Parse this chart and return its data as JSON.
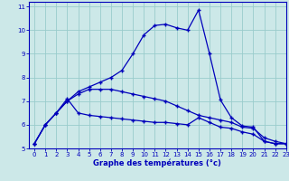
{
  "xlabel": "Graphe des températures (°c)",
  "bg_color": "#cce8e8",
  "line_color": "#0000bb",
  "grid_color": "#99cccc",
  "axis_color": "#0000bb",
  "xlim": [
    -0.5,
    23
  ],
  "ylim": [
    5,
    11.2
  ],
  "yticks": [
    5,
    6,
    7,
    8,
    9,
    10,
    11
  ],
  "xticks": [
    0,
    1,
    2,
    3,
    4,
    5,
    6,
    7,
    8,
    9,
    10,
    11,
    12,
    13,
    14,
    15,
    16,
    17,
    18,
    19,
    20,
    21,
    22,
    23
  ],
  "line1_x": [
    0,
    1,
    2,
    3,
    4,
    5,
    6,
    7,
    8,
    9,
    10,
    11,
    12,
    13,
    14,
    15,
    16,
    17,
    18,
    19,
    20,
    21,
    22,
    23
  ],
  "line1_y": [
    5.2,
    6.0,
    6.5,
    7.0,
    7.4,
    7.6,
    7.8,
    8.0,
    8.3,
    9.0,
    9.8,
    10.2,
    10.25,
    10.1,
    10.0,
    10.85,
    9.0,
    7.05,
    6.3,
    5.95,
    5.9,
    5.3,
    5.2,
    5.2
  ],
  "line2_x": [
    0,
    1,
    2,
    3,
    4,
    5,
    6,
    7,
    8,
    9,
    10,
    11,
    12,
    13,
    14,
    15,
    16,
    17,
    18,
    19,
    20,
    21,
    22,
    23
  ],
  "line2_y": [
    5.2,
    6.0,
    6.5,
    7.1,
    6.5,
    6.4,
    6.35,
    6.3,
    6.25,
    6.2,
    6.15,
    6.1,
    6.1,
    6.05,
    6.0,
    6.3,
    6.1,
    5.9,
    5.85,
    5.7,
    5.6,
    5.3,
    5.2,
    5.2
  ],
  "line3_x": [
    0,
    1,
    2,
    3,
    4,
    5,
    6,
    7,
    8,
    9,
    10,
    11,
    12,
    13,
    14,
    15,
    16,
    17,
    18,
    19,
    20,
    21,
    22,
    23
  ],
  "line3_y": [
    5.2,
    6.0,
    6.5,
    7.0,
    7.3,
    7.5,
    7.5,
    7.5,
    7.4,
    7.3,
    7.2,
    7.1,
    7.0,
    6.8,
    6.6,
    6.4,
    6.3,
    6.2,
    6.1,
    5.9,
    5.85,
    5.45,
    5.3,
    5.2
  ]
}
